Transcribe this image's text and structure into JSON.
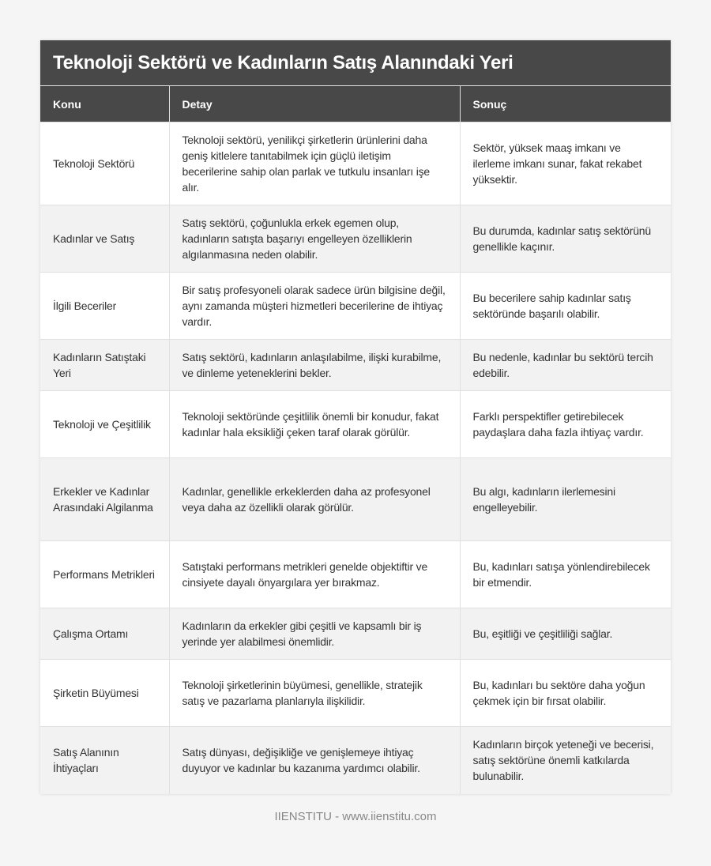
{
  "title": "Teknoloji Sektörü ve Kadınların Satış Alanındaki Yeri",
  "columns": [
    "Konu",
    "Detay",
    "Sonuç"
  ],
  "rows": [
    [
      "Teknoloji Sektörü",
      "Teknoloji sektörü, yenilikçi şirketlerin ürünlerini daha geniş kitlelere tanıtabilmek için güçlü iletişim becerilerine sahip olan parlak ve tutkulu insanları işe alır.",
      "Sektör, yüksek maaş imkanı ve ilerleme imkanı sunar, fakat rekabet yüksektir."
    ],
    [
      "Kadınlar ve Satış",
      "Satış sektörü, çoğunlukla erkek egemen olup, kadınların satışta başarıyı engelleyen özelliklerin algılanmasına neden olabilir.",
      "Bu durumda, kadınlar satış sektörünü genellikle kaçınır."
    ],
    [
      "İlgili Beceriler",
      "Bir satış profesyoneli olarak sadece ürün bilgisine değil, aynı zamanda müşteri hizmetleri becerilerine de ihtiyaç vardır.",
      "Bu becerilere sahip kadınlar satış sektöründe başarılı olabilir."
    ],
    [
      "Kadınların Satıştaki Yeri",
      "Satış sektörü, kadınların anlaşılabilme, ilişki kurabilme, ve dinleme yeteneklerini bekler.",
      "Bu nedenle, kadınlar bu sektörü tercih edebilir."
    ],
    [
      "Teknoloji ve Çeşitlilik",
      "Teknoloji sektöründe çeşitlilik önemli bir konudur, fakat kadınlar hala eksikliği çeken taraf olarak görülür.",
      "Farklı perspektifler getirebilecek paydaşlara daha fazla ihtiyaç vardır."
    ],
    [
      "Erkekler ve Kadınlar Arasındaki Algilanma",
      "Kadınlar, genellikle erkeklerden daha az profesyonel veya daha az özellikli olarak görülür.",
      "Bu algı, kadınların ilerlemesini engelleyebilir."
    ],
    [
      "Performans Metrikleri",
      "Satıştaki performans metrikleri genelde objektiftir ve cinsiyete dayalı önyargılara yer bırakmaz.",
      "Bu, kadınları satışa yönlendirebilecek bir etmendir."
    ],
    [
      "Çalışma Ortamı",
      "Kadınların da erkekler gibi çeşitli ve kapsamlı bir iş yerinde yer alabilmesi önemlidir.",
      "Bu, eşitliği ve çeşitliliği sağlar."
    ],
    [
      "Şirketin Büyümesi",
      "Teknoloji şirketlerinin büyümesi, genellikle, stratejik satış ve pazarlama planlarıyla ilişkilidir.",
      "Bu, kadınları bu sektöre daha yoğun çekmek için bir fırsat olabilir."
    ],
    [
      "Satış Alanının İhtiyaçları",
      "Satış dünyası, değişikliğe ve genişlemeye ihtiyaç duyuyor ve kadınlar bu kazanıma yardımcı olabilir.",
      "Kadınların birçok yeteneği ve becerisi, satış sektörüne önemli katkılarda bulunabilir."
    ]
  ],
  "footer": "IIENSTITU - www.iienstitu.com"
}
